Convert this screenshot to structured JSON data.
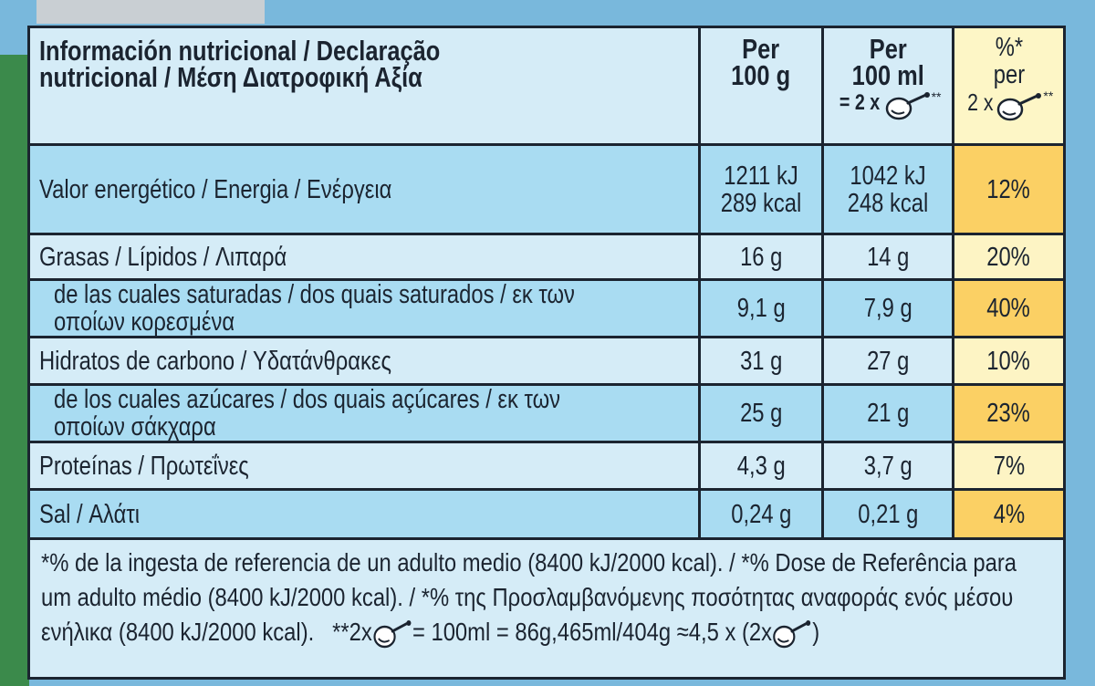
{
  "header": {
    "title": "Información nutricional / Declaração\nnutricional / Μέση Διατροφική Αξία",
    "col_100g": "Per\n100 g",
    "col_100ml": "Per\n100 ml",
    "col_100ml_portion": "= 2 x",
    "col_100ml_note": "**",
    "col_pct": "%*\nper",
    "col_pct_portion": "2 x",
    "col_pct_note": "**"
  },
  "rows": [
    {
      "label": "Valor energético / Energia / Ενέργεια",
      "per_100g": "1211 kJ\n289 kcal",
      "per_100ml": "1042 kJ\n248 kcal",
      "pct": "12%",
      "indent": false
    },
    {
      "label": "Grasas / Lípidos / Λιπαρά",
      "per_100g": "16 g",
      "per_100ml": "14 g",
      "pct": "20%",
      "indent": false
    },
    {
      "label": "de las cuales saturadas / dos quais saturados / εκ των οποίων κορεσμένα",
      "per_100g": "9,1 g",
      "per_100ml": "7,9 g",
      "pct": "40%",
      "indent": true
    },
    {
      "label": "Hidratos de carbono / Υδατάνθρακες",
      "per_100g": "31 g",
      "per_100ml": "27 g",
      "pct": "10%",
      "indent": false
    },
    {
      "label": "de los cuales azúcares / dos quais açúcares / εκ των οποίων σάκχαρα",
      "per_100g": "25 g",
      "per_100ml": "21 g",
      "pct": "23%",
      "indent": true
    },
    {
      "label": "Proteínas / Πρωτεΐνες",
      "per_100g": "4,3 g",
      "per_100ml": "3,7 g",
      "pct": "7%",
      "indent": false
    },
    {
      "label": "Sal / Αλάτι",
      "per_100g": "0,24 g",
      "per_100ml": "0,21 g",
      "pct": "4%",
      "indent": false
    }
  ],
  "footnote": {
    "text": "*% de la ingesta de referencia de un adulto medio (8400 kJ/2000 kcal). / *% Dose de Referência para um adulto médio (8400 kJ/2000 kcal). / *% της Προσλαμβανόμενης ποσότητας αναφοράς ενός μέσου ενήλικα (8400 kJ/2000 kcal).",
    "portion_prefix": "**2x",
    "portion_eq": "= 100ml = 86g,465ml/404g ≈4,5 x (2x",
    "close": ")"
  }
}
